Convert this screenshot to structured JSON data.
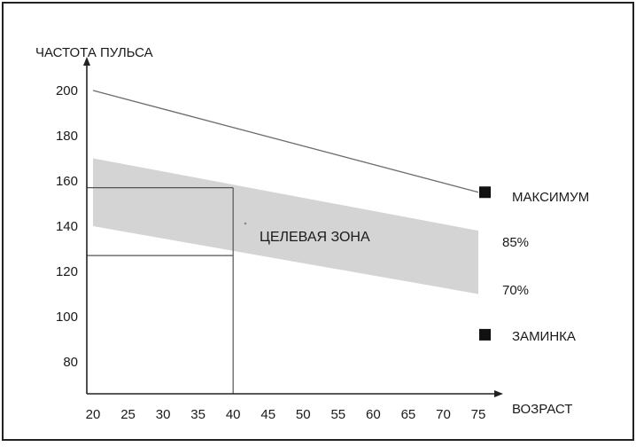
{
  "chart_data": {
    "type": "line",
    "ylabel": "ЧАСТОТА ПУЛЬСА",
    "xlabel": "ВОЗРАСТ",
    "x_ticks": [
      "20",
      "25",
      "30",
      "35",
      "40",
      "45",
      "50",
      "55",
      "60",
      "65",
      "70",
      "75"
    ],
    "y_ticks": [
      "80",
      "100",
      "120",
      "140",
      "160",
      "180",
      "200"
    ],
    "xlim": [
      20,
      75
    ],
    "ylim": [
      64,
      214
    ],
    "grid": false,
    "series": [
      {
        "name": "МАКСИМУМ",
        "x": [
          20,
          75
        ],
        "y": [
          200,
          155
        ],
        "marker_value": 155
      },
      {
        "name": "85%",
        "x": [
          20,
          75
        ],
        "y": [
          170,
          138
        ]
      },
      {
        "name": "70%",
        "x": [
          20,
          75
        ],
        "y": [
          140,
          110
        ]
      },
      {
        "name": "ЗАМИНКА",
        "marker_value": 92
      }
    ],
    "zone_label": "ЦЕЛЕВАЯ ЗОНА",
    "reference": {
      "x": 40,
      "y_upper": 157,
      "y_lower": 127
    },
    "colors": {
      "zone": "#d4d4d4",
      "max_line": "#6e6e6e",
      "axis": "#222222",
      "marker": "#111111"
    }
  }
}
